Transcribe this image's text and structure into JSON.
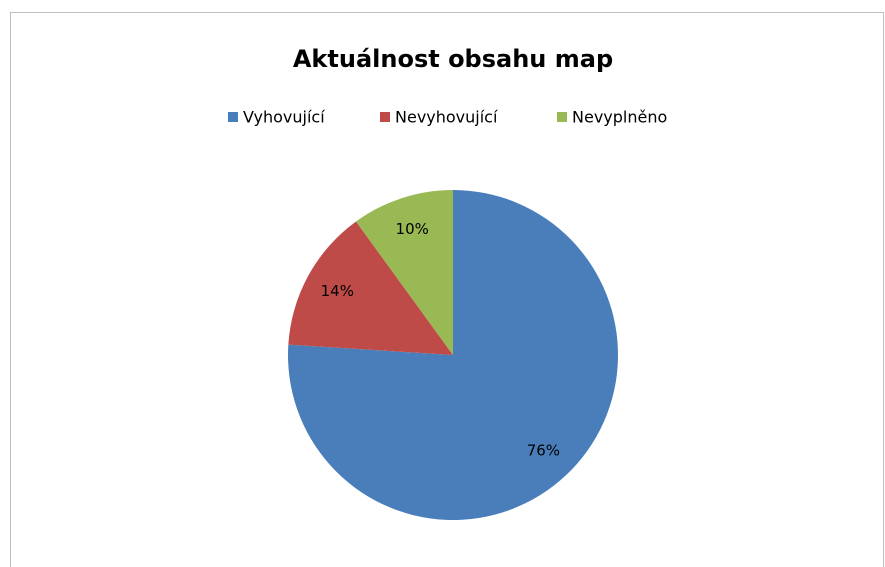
{
  "chart_data": {
    "type": "pie",
    "title": "Aktuálnost obsahu map",
    "categories": [
      "Vyhovující",
      "Nevyhovující",
      "Nevyplněno"
    ],
    "values": [
      76,
      14,
      10
    ],
    "value_labels": [
      "76%",
      "14%",
      "10%"
    ],
    "colors": [
      "#4a7ebb",
      "#be4b48",
      "#98b954"
    ],
    "legend": "top"
  }
}
